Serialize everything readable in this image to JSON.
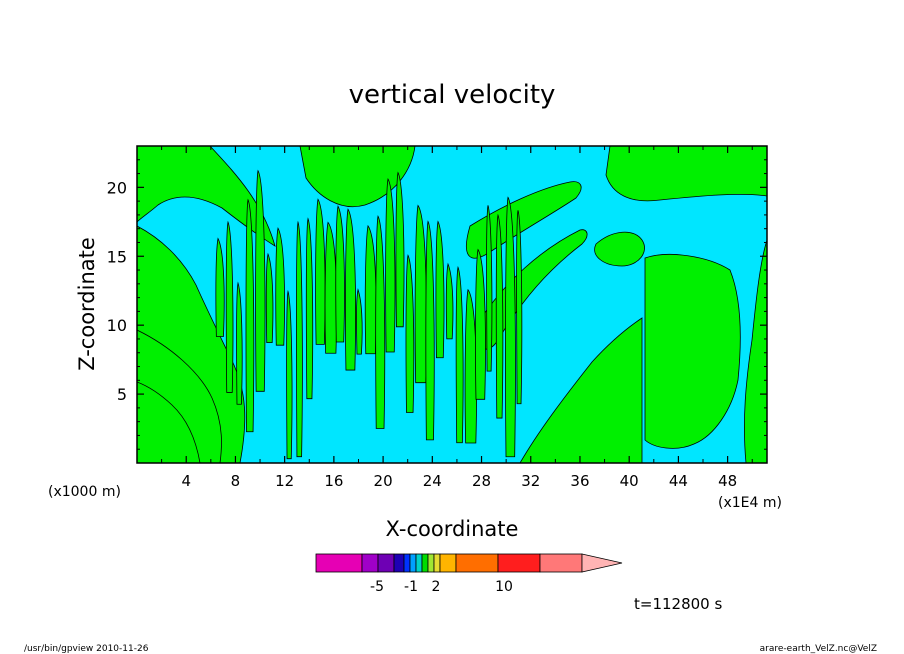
{
  "chart_data": {
    "type": "heatmap",
    "title": "vertical velocity",
    "xlabel": "X-coordinate",
    "ylabel": "Z-coordinate",
    "x_unit_left": "(x1000 m)",
    "x_unit_right": "(x1E4 m)",
    "xlim": [
      0,
      51.2
    ],
    "ylim": [
      0,
      23
    ],
    "x_ticks": [
      "4",
      "8",
      "12",
      "16",
      "20",
      "24",
      "28",
      "32",
      "36",
      "40",
      "44",
      "48"
    ],
    "x_tick_values": [
      4,
      8,
      12,
      16,
      20,
      24,
      28,
      32,
      36,
      40,
      44,
      48
    ],
    "y_ticks": [
      "5",
      "10",
      "15",
      "20"
    ],
    "y_tick_values": [
      5,
      10,
      15,
      20
    ],
    "time_label": "t=112800 s",
    "colorbar": {
      "colors": [
        "#e600b4",
        "#a000c8",
        "#6e00b4",
        "#1e00b4",
        "#0032ff",
        "#00a0ff",
        "#00d2c8",
        "#00dc00",
        "#a0e632",
        "#e6dc32",
        "#ffb400",
        "#ff6e00",
        "#ff1e1e",
        "#ff7878",
        "#ffb4b4"
      ],
      "tick_labels": [
        "-5",
        "-1",
        "2",
        "10"
      ]
    },
    "field_colors": {
      "negative": "#00e6ff",
      "positive": "#00f000",
      "contour": "#000000"
    }
  },
  "footer": {
    "left": "/usr/bin/gpview   2010-11-26",
    "right": "arare-earth_VelZ.nc@VelZ"
  }
}
